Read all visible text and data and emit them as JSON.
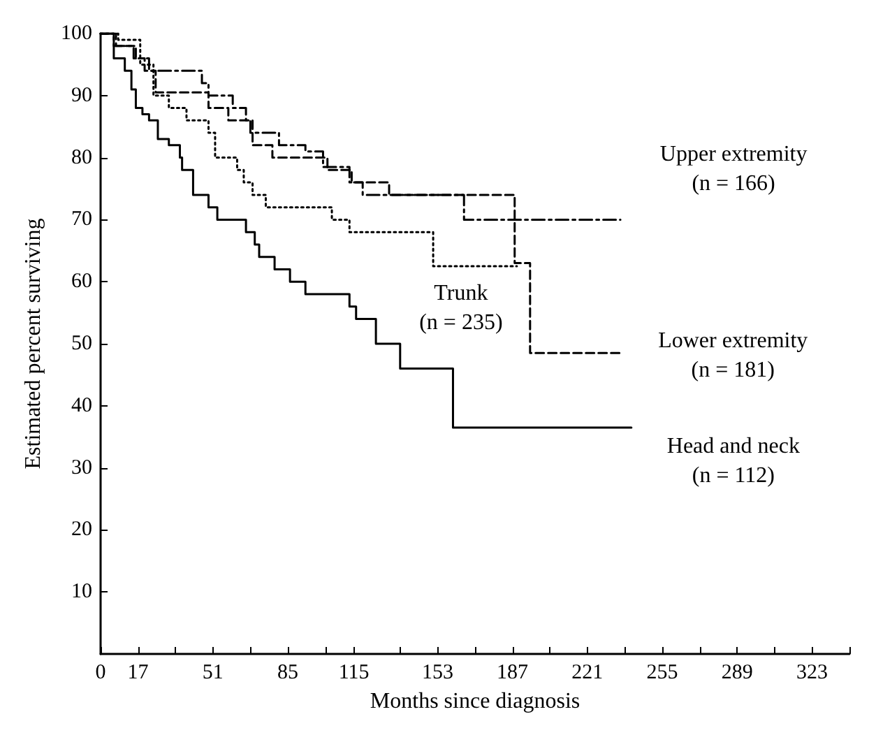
{
  "chart_data": {
    "type": "step",
    "xlabel": "Months since diagnosis",
    "ylabel": "Estimated percent surviving",
    "xlim": [
      0,
      340
    ],
    "ylim": [
      0,
      100
    ],
    "xticks": [
      0,
      17,
      {
        "value": 34,
        "label": null
      },
      51,
      {
        "value": 68,
        "label": null
      },
      85,
      {
        "value": 102,
        "label": null
      },
      115,
      {
        "value": 136,
        "label": null
      },
      153,
      {
        "value": 170,
        "label": null
      },
      187,
      {
        "value": 204,
        "label": null
      },
      221,
      {
        "value": 238,
        "label": null
      },
      255,
      {
        "value": 272,
        "label": null
      },
      289,
      {
        "value": 306,
        "label": null
      },
      323,
      {
        "value": 340,
        "label": null
      }
    ],
    "yticks": [
      10,
      20,
      30,
      40,
      50,
      60,
      70,
      80,
      90,
      100
    ],
    "grid": false,
    "legend": false,
    "marker": "none",
    "series": [
      {
        "name": "Head and neck\n(n = 112)",
        "color": "#000000",
        "line_style": "solid",
        "x": [
          0,
          6,
          11,
          14,
          16,
          19,
          22,
          26,
          31,
          36,
          37,
          42,
          49,
          53,
          66,
          70,
          72,
          79,
          86,
          93,
          113,
          116,
          125,
          136,
          160,
          241
        ],
        "values": [
          100,
          96,
          94,
          91,
          88,
          87,
          86,
          83,
          82,
          80,
          78,
          74,
          72,
          70,
          68,
          66,
          64,
          62,
          60,
          58,
          56,
          54,
          50,
          46,
          36.5,
          36.5
        ]
      },
      {
        "name": "Trunk\n(n = 235)",
        "color": "#000000",
        "line_style": "dotted",
        "x": [
          0,
          8,
          18,
          24,
          31,
          39,
          49,
          52,
          62,
          65,
          69,
          75,
          105,
          113,
          151,
          189
        ],
        "values": [
          100,
          99,
          95,
          90,
          88,
          86,
          84,
          80,
          78,
          76,
          74,
          72,
          70,
          68,
          62.5,
          62.5
        ]
      },
      {
        "name": "Upper extremity\n(n = 166)",
        "color": "#000000",
        "line_style": "dashdot",
        "x": [
          0,
          6,
          15,
          22,
          46,
          49,
          60,
          66,
          68,
          81,
          93,
          101,
          113,
          119,
          165,
          236
        ],
        "values": [
          100,
          98,
          96,
          94,
          92,
          90,
          88,
          86,
          84,
          82,
          81,
          78.5,
          76,
          74,
          70,
          70
        ]
      },
      {
        "name": "Lower extremity\n(n = 181)",
        "color": "#000000",
        "line_style": "dashed",
        "x": [
          0,
          7,
          16,
          20,
          25,
          49,
          58,
          69,
          78,
          103,
          114,
          131,
          188,
          195,
          237
        ],
        "values": [
          100,
          98,
          96,
          94,
          90.5,
          88,
          86,
          82,
          80,
          78,
          76,
          74,
          63,
          48.5,
          48.5
        ]
      }
    ]
  }
}
